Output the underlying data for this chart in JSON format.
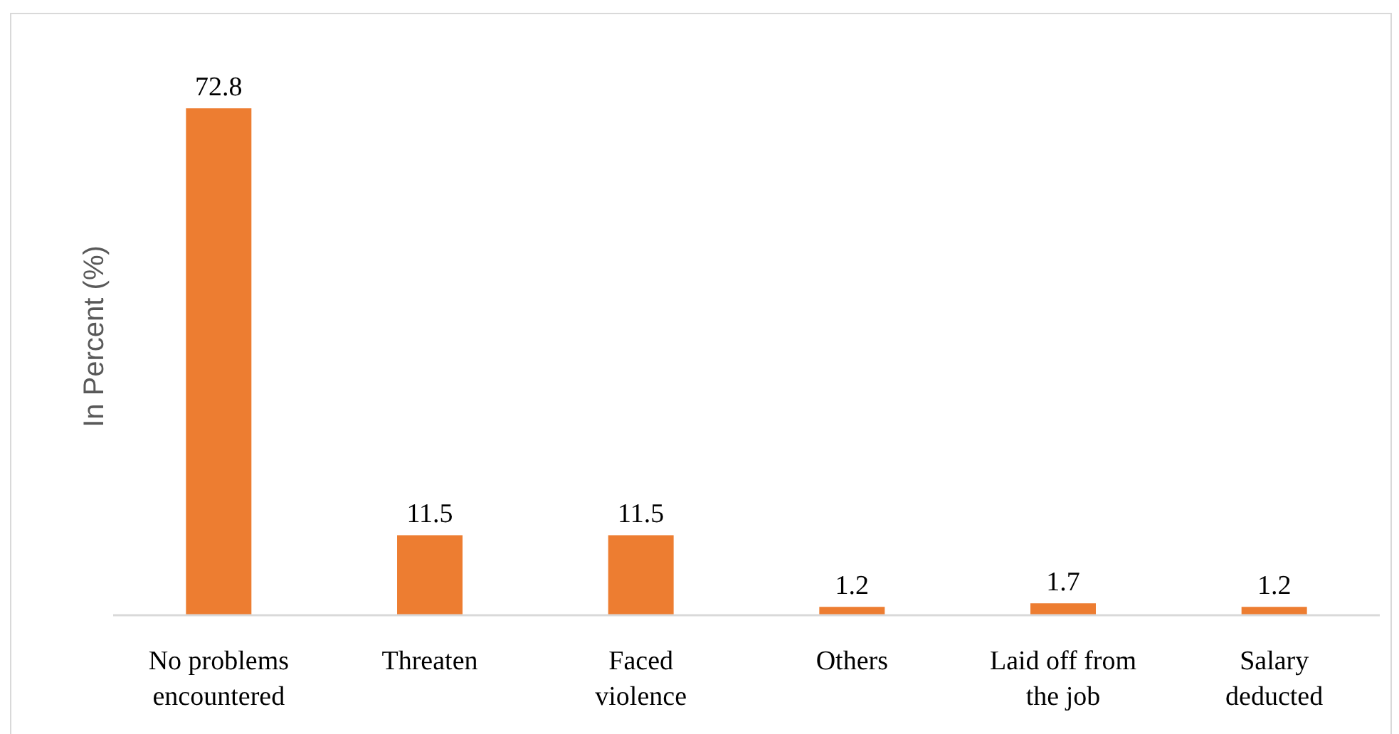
{
  "chart_data": {
    "type": "bar",
    "ylabel": "In Percent (%)",
    "categories": [
      "No problems encountered",
      "Threaten",
      "Faced violence",
      "Others",
      "Laid off from the job",
      "Salary deducted"
    ],
    "values": [
      72.8,
      11.5,
      11.5,
      1.2,
      1.7,
      1.2
    ],
    "color": "#ed7d31",
    "data_labels": true,
    "tick_labels": "x"
  }
}
